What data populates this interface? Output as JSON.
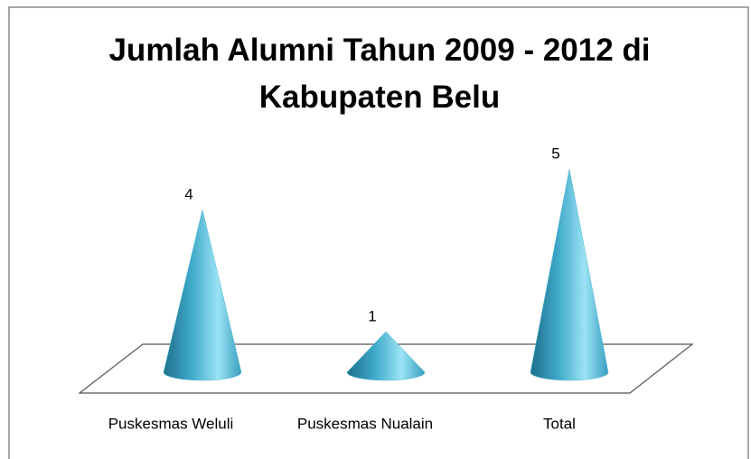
{
  "chart_data": {
    "type": "cone",
    "title": "Jumlah Alumni Tahun 2009 - 2012 di Kabupaten Belu",
    "categories": [
      "Puskesmas Weluli",
      "Puskesmas Nualain",
      "Total"
    ],
    "values": [
      4,
      1,
      5
    ],
    "color": "#4bb6d6"
  }
}
